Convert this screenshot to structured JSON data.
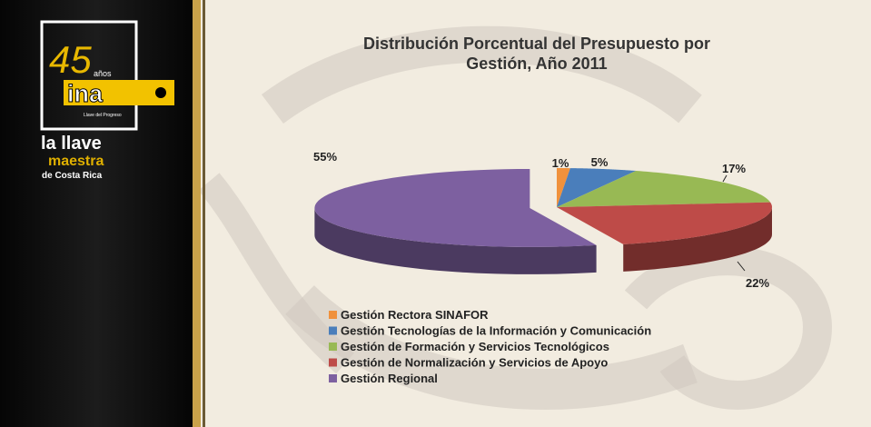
{
  "logo": {
    "number": "45",
    "years": "años",
    "brand": "ina",
    "motto": "Llave del Progreso",
    "line1": "la llave",
    "line2": "maestra",
    "line3": "de Costa Rica"
  },
  "chart_data": {
    "type": "pie",
    "title": "Distribución Porcentual del Presupuesto por",
    "subtitle": "Gestión,  Año 2011",
    "categories": [
      "Gestión Rectora SINAFOR",
      "Gestión Tecnologías de la Información y Comunicación",
      "Gestión de Formación y Servicios Tecnológicos",
      "Gestión de Normalización y Servicios de Apoyo",
      "Gestión Regional"
    ],
    "values": [
      1,
      5,
      17,
      22,
      55
    ],
    "value_labels": [
      "1%",
      "5%",
      "17%",
      "22%",
      "55%"
    ],
    "colors": [
      "#f0913c",
      "#4a7ebb",
      "#98b954",
      "#be4b48",
      "#7d60a0"
    ],
    "legend": "bottom-left"
  }
}
